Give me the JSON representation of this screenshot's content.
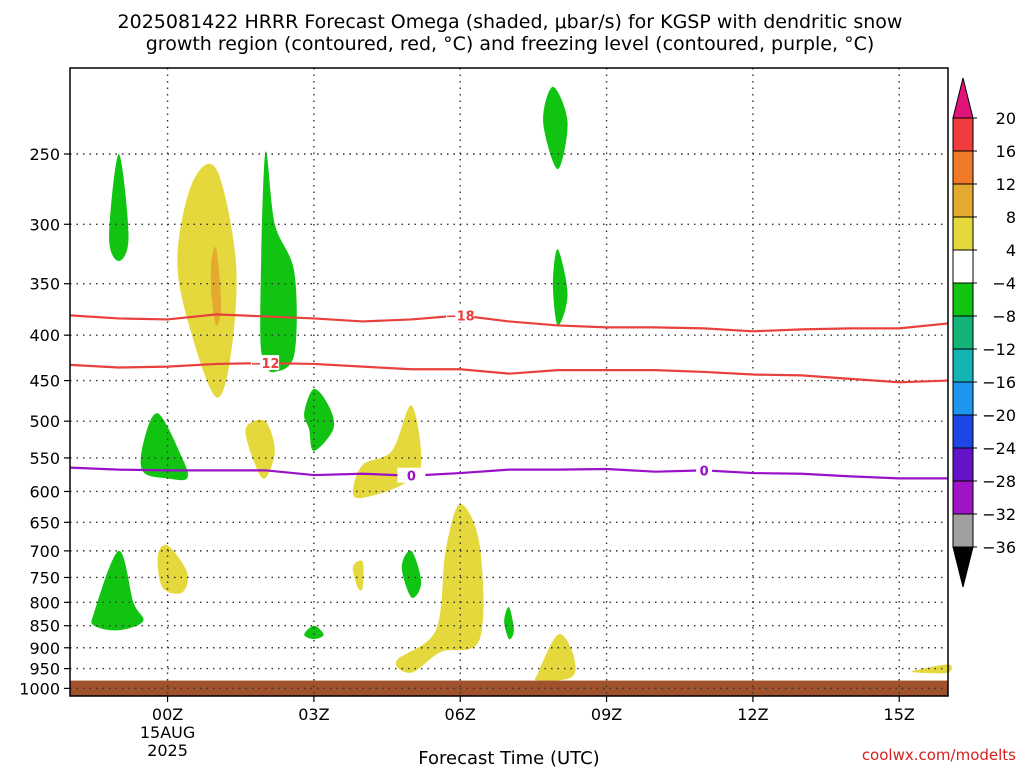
{
  "chart_data": {
    "type": "heatmap",
    "title_lines": [
      "2025081422 HRRR Forecast Omega (shaded, μbar/s) for KGSP with dendritic snow",
      "growth region (contoured, red, °C) and freezing level (contoured, purple, °C)"
    ],
    "xlabel": "Forecast Time (UTC)",
    "credit": "coolwx.com/modelts",
    "x_ticks": [
      {
        "t": 0,
        "lines": [
          "00Z",
          "15AUG",
          "2025"
        ]
      },
      {
        "t": 3,
        "lines": [
          "03Z"
        ]
      },
      {
        "t": 6,
        "lines": [
          "06Z"
        ]
      },
      {
        "t": 9,
        "lines": [
          "09Z"
        ]
      },
      {
        "t": 12,
        "lines": [
          "12Z"
        ]
      },
      {
        "t": 15,
        "lines": [
          "15Z"
        ]
      }
    ],
    "xlim": [
      -2,
      16
    ],
    "y_ticks": [
      250,
      300,
      350,
      400,
      450,
      500,
      550,
      600,
      650,
      700,
      750,
      800,
      850,
      900,
      950,
      1000
    ],
    "ylim_hpa": [
      1020,
      200
    ],
    "y_scale": "log-pressure",
    "grid": true,
    "colorbar": {
      "labels": [
        "20",
        "16",
        "12",
        "8",
        "4",
        "−4",
        "−8",
        "−12",
        "−16",
        "−20",
        "−24",
        "−28",
        "−32",
        "−36"
      ],
      "colors": [
        "#f03c3c",
        "#f07a28",
        "#e4aa30",
        "#e4d83c",
        "#ffffff",
        "#12c412",
        "#12b478",
        "#12b4b4",
        "#1e96f0",
        "#1e46e6",
        "#6414c8",
        "#a014c8",
        "#a0a0a0"
      ],
      "top_arrow_color": "#e01478",
      "bottom_arrow_color": "#000000"
    },
    "dendritic_contours": [
      {
        "label": "−18",
        "color": "#e8403c",
        "points": [
          [
            -2,
            380
          ],
          [
            -1,
            383
          ],
          [
            0,
            384
          ],
          [
            1,
            379
          ],
          [
            2,
            381
          ],
          [
            3,
            383
          ],
          [
            4,
            386
          ],
          [
            5,
            384
          ],
          [
            6,
            380
          ],
          [
            7,
            386
          ],
          [
            8,
            390
          ],
          [
            9,
            392
          ],
          [
            10,
            392
          ],
          [
            11,
            393
          ],
          [
            12,
            396
          ],
          [
            13,
            394
          ],
          [
            14,
            393
          ],
          [
            15,
            393
          ],
          [
            16,
            388
          ]
        ]
      },
      {
        "label": "−12",
        "color": "#e8403c",
        "points": [
          [
            -2,
            432
          ],
          [
            -1,
            435
          ],
          [
            0,
            434
          ],
          [
            1,
            431
          ],
          [
            2,
            430
          ],
          [
            3,
            431
          ],
          [
            4,
            434
          ],
          [
            5,
            437
          ],
          [
            6,
            437
          ],
          [
            7,
            442
          ],
          [
            8,
            438
          ],
          [
            9,
            438
          ],
          [
            10,
            438
          ],
          [
            11,
            440
          ],
          [
            12,
            443
          ],
          [
            13,
            444
          ],
          [
            14,
            448
          ],
          [
            15,
            452
          ],
          [
            16,
            450
          ]
        ]
      }
    ],
    "freezing_contour": {
      "label": "0",
      "color": "#9a10c8",
      "points": [
        [
          -2,
          564
        ],
        [
          -1,
          567
        ],
        [
          0,
          568
        ],
        [
          1,
          568
        ],
        [
          2,
          568
        ],
        [
          3,
          575
        ],
        [
          4,
          573
        ],
        [
          5,
          576
        ],
        [
          6,
          572
        ],
        [
          7,
          567
        ],
        [
          8,
          567
        ],
        [
          9,
          566
        ],
        [
          10,
          570
        ],
        [
          11,
          568
        ],
        [
          12,
          572
        ],
        [
          13,
          573
        ],
        [
          14,
          577
        ],
        [
          15,
          580
        ],
        [
          16,
          580
        ]
      ]
    },
    "omega_regions": [
      {
        "name": "green-250-300",
        "class": "-8..-4",
        "color": "#12c412",
        "points": [
          [
            -1.2,
            310
          ],
          [
            -1,
            250
          ],
          [
            -0.8,
            310
          ],
          [
            -1,
            330
          ]
        ]
      },
      {
        "name": "yellow-270-460",
        "class": "4..8",
        "color": "#e4d83c",
        "points": [
          [
            0.2,
            330
          ],
          [
            0.5,
            270
          ],
          [
            1,
            260
          ],
          [
            1.4,
            330
          ],
          [
            1.3,
            420
          ],
          [
            1,
            470
          ],
          [
            0.5,
            400
          ]
        ]
      },
      {
        "name": "orange-330-380",
        "class": "8..12",
        "color": "#e4aa30",
        "points": [
          [
            0.9,
            330
          ],
          [
            1,
            320
          ],
          [
            1.1,
            370
          ],
          [
            1,
            390
          ],
          [
            0.9,
            360
          ]
        ]
      },
      {
        "name": "green-250-420",
        "class": "-8..-4",
        "color": "#12c412",
        "points": [
          [
            1.9,
            390
          ],
          [
            2,
            250
          ],
          [
            2.2,
            300
          ],
          [
            2.6,
            340
          ],
          [
            2.6,
            420
          ],
          [
            2.2,
            440
          ],
          [
            2,
            430
          ]
        ]
      },
      {
        "name": "green-470-530",
        "class": "-8..-4",
        "color": "#12c412",
        "points": [
          [
            2.8,
            490
          ],
          [
            3,
            460
          ],
          [
            3.3,
            480
          ],
          [
            3.4,
            510
          ],
          [
            3,
            540
          ],
          [
            2.9,
            510
          ]
        ]
      },
      {
        "name": "yellow-500-580",
        "class": "4..8",
        "color": "#e4d83c",
        "points": [
          [
            1.6,
            510
          ],
          [
            2,
            500
          ],
          [
            2.2,
            540
          ],
          [
            2,
            580
          ],
          [
            1.8,
            560
          ]
        ]
      },
      {
        "name": "green-500-580",
        "class": "-8..-4",
        "color": "#12c412",
        "points": [
          [
            -0.5,
            530
          ],
          [
            -0.2,
            490
          ],
          [
            0.3,
            550
          ],
          [
            0.4,
            580
          ],
          [
            0,
            580
          ],
          [
            -0.5,
            570
          ]
        ]
      },
      {
        "name": "yellow-480-610",
        "class": "4..8",
        "color": "#e4d83c",
        "points": [
          [
            3.8,
            600
          ],
          [
            4,
            560
          ],
          [
            4.6,
            540
          ],
          [
            5,
            480
          ],
          [
            5.2,
            560
          ],
          [
            4.8,
            590
          ],
          [
            4,
            610
          ]
        ]
      },
      {
        "name": "green-230-260",
        "class": "-8..-4",
        "color": "#12c412",
        "points": [
          [
            7.7,
            230
          ],
          [
            7.9,
            210
          ],
          [
            8.2,
            230
          ],
          [
            8,
            260
          ]
        ]
      },
      {
        "name": "green-320-390",
        "class": "-8..-4",
        "color": "#12c412",
        "points": [
          [
            7.9,
            350
          ],
          [
            8,
            320
          ],
          [
            8.2,
            360
          ],
          [
            8,
            390
          ]
        ]
      },
      {
        "name": "yellow-700-780",
        "class": "4..8",
        "color": "#e4d83c",
        "points": [
          [
            -0.2,
            710
          ],
          [
            0,
            690
          ],
          [
            0.4,
            740
          ],
          [
            0.3,
            780
          ],
          [
            -0.1,
            770
          ]
        ]
      },
      {
        "name": "green-700-860",
        "class": "-8..-4",
        "color": "#12c412",
        "points": [
          [
            -1.5,
            820
          ],
          [
            -1,
            700
          ],
          [
            -0.7,
            800
          ],
          [
            -0.5,
            840
          ],
          [
            -1,
            860
          ],
          [
            -1.5,
            850
          ]
        ]
      },
      {
        "name": "yellow-730-770",
        "class": "4..8",
        "color": "#e4d83c",
        "points": [
          [
            3.8,
            730
          ],
          [
            4,
            720
          ],
          [
            4,
            770
          ],
          [
            3.9,
            770
          ]
        ]
      },
      {
        "name": "green-700-790",
        "class": "-8..-4",
        "color": "#12c412",
        "points": [
          [
            4.8,
            730
          ],
          [
            5,
            700
          ],
          [
            5.2,
            760
          ],
          [
            5,
            790
          ]
        ]
      },
      {
        "name": "green-860-880",
        "class": "-8..-4",
        "color": "#12c412",
        "points": [
          [
            2.8,
            870
          ],
          [
            3,
            850
          ],
          [
            3.2,
            870
          ],
          [
            3,
            880
          ]
        ]
      },
      {
        "name": "yellow-620-960",
        "class": "4..8",
        "color": "#e4d83c",
        "points": [
          [
            4.7,
            930
          ],
          [
            5.5,
            860
          ],
          [
            5.7,
            700
          ],
          [
            6,
            620
          ],
          [
            6.4,
            690
          ],
          [
            6.4,
            880
          ],
          [
            5.6,
            910
          ],
          [
            5,
            960
          ]
        ]
      },
      {
        "name": "green-820-880",
        "class": "-8..-4",
        "color": "#12c412",
        "points": [
          [
            6.9,
            840
          ],
          [
            7,
            810
          ],
          [
            7.1,
            860
          ],
          [
            7,
            880
          ]
        ]
      },
      {
        "name": "yellow-870-980",
        "class": "4..8",
        "color": "#e4d83c",
        "points": [
          [
            7.6,
            960
          ],
          [
            8,
            870
          ],
          [
            8.3,
            910
          ],
          [
            8.3,
            970
          ],
          [
            7.6,
            980
          ]
        ]
      },
      {
        "name": "yellow-940-960",
        "class": "4..8",
        "color": "#e4d83c",
        "points": [
          [
            15.3,
            955
          ],
          [
            16,
            940
          ],
          [
            16,
            960
          ],
          [
            15.4,
            960
          ]
        ]
      }
    ],
    "ground_color": "#a0522d",
    "ground_top_hpa": 980
  }
}
